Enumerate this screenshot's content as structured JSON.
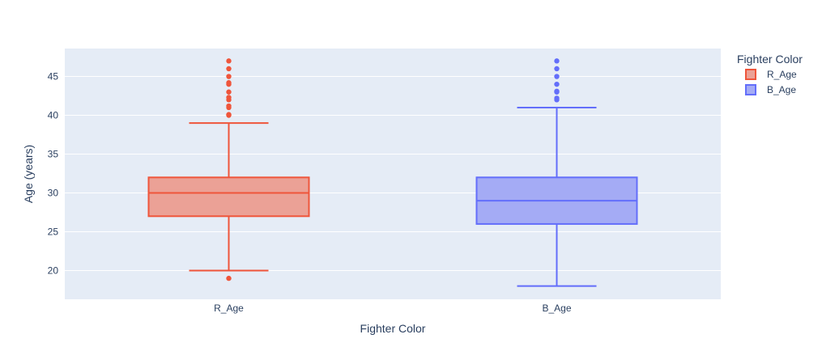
{
  "chart_data": {
    "type": "box",
    "title": "",
    "xlabel": "Fighter Color",
    "ylabel": "Age (years)",
    "categories": [
      "R_Age",
      "B_Age"
    ],
    "ylim": [
      16.3,
      48.6
    ],
    "yticks": [
      20,
      25,
      30,
      35,
      40,
      45
    ],
    "grid": true,
    "legend": {
      "title": "Fighter Color",
      "placement": "top-right",
      "entries": [
        "R_Age",
        "B_Age"
      ]
    },
    "series": [
      {
        "name": "R_Age",
        "color": "#EF553B",
        "fill": "#EBA196",
        "min": 20,
        "q1": 27,
        "median": 30,
        "q3": 32,
        "max": 39,
        "outliers": [
          19,
          40,
          40.1,
          41,
          41.2,
          42,
          42.3,
          43,
          44,
          44.2,
          45,
          46,
          47
        ]
      },
      {
        "name": "B_Age",
        "color": "#636EFA",
        "fill": "#A4ABF5",
        "min": 18,
        "q1": 26,
        "median": 29,
        "q3": 32,
        "max": 41,
        "outliers": [
          42,
          42.2,
          43,
          43.1,
          44,
          45,
          46,
          47
        ]
      }
    ]
  }
}
